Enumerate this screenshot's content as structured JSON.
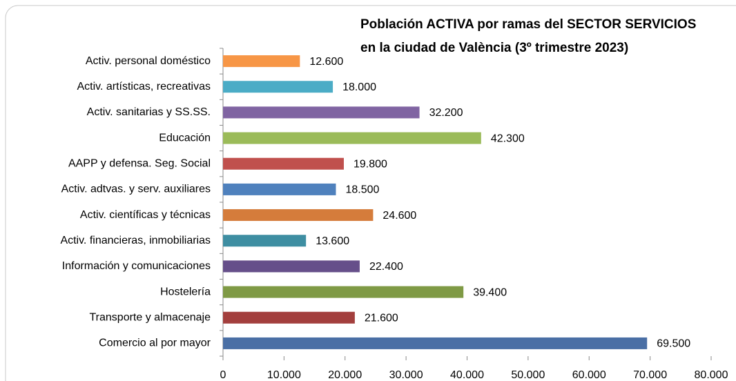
{
  "chart_data": {
    "type": "bar",
    "orientation": "horizontal",
    "title": [
      "Población ACTIVA por ramas del SECTOR SERVICIOS",
      "en la ciudad de València (3º trimestre 2023)"
    ],
    "categories": [
      "Comercio al por mayor",
      "Transporte y almacenaje",
      "Hostelería",
      "Información y comunicaciones",
      "Activ. financieras, inmobiliarias",
      "Activ. científicas y técnicas",
      "Activ. adtvas. y serv. auxiliares",
      "AAPP y defensa. Seg. Social",
      "Educación",
      "Activ. sanitarias y SS.SS.",
      "Activ. artísticas, recreativas",
      "Activ. personal doméstico"
    ],
    "values": [
      69500,
      21600,
      39400,
      22400,
      13600,
      24600,
      18500,
      19800,
      42300,
      32200,
      18000,
      12600
    ],
    "value_labels": [
      "69.500",
      "21.600",
      "39.400",
      "22.400",
      "13.600",
      "24.600",
      "18.500",
      "19.800",
      "42.300",
      "32.200",
      "18.000",
      "12.600"
    ],
    "colors": [
      "#4a6fa5",
      "#a33f3d",
      "#7f9a45",
      "#664f8a",
      "#3e8ea2",
      "#d57c3b",
      "#4f81bd",
      "#c0504d",
      "#9bbb59",
      "#8064a2",
      "#4bacc6",
      "#f79646"
    ],
    "xlim": [
      0,
      80000
    ],
    "xticks": [
      0,
      {
        "value": 10000,
        "label": "10.000"
      },
      {
        "value": 20000,
        "label": "20.000"
      },
      {
        "value": 30000,
        "label": "30.000"
      },
      {
        "value": 40000,
        "label": "40.000"
      },
      {
        "value": 50000,
        "label": "50.000"
      },
      {
        "value": 60000,
        "label": "60.000"
      },
      {
        "value": 70000,
        "label": "70.000"
      },
      {
        "value": 80000,
        "label": "80.000"
      }
    ],
    "grid": false
  }
}
